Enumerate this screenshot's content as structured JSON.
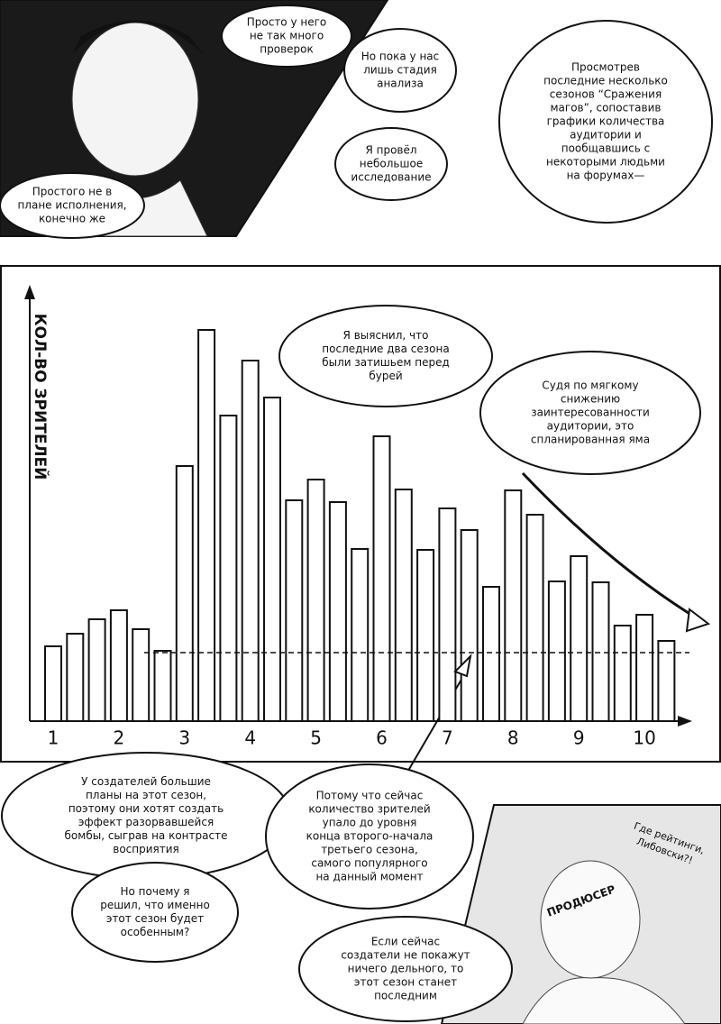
{
  "bubbles": [
    {
      "lines": [
        "Просто у него",
        "не так много",
        "проверок"
      ]
    },
    {
      "lines": [
        "Простого не в",
        "плане исполнения,",
        "конечно же"
      ]
    },
    {
      "lines": [
        "Но пока у нас",
        "лишь стадия",
        "анализа"
      ]
    },
    {
      "lines": [
        "Я провёл",
        "небольшое",
        "исследование"
      ]
    },
    {
      "lines": [
        "Просмотрев",
        "последние несколько",
        "сезонов “Сражения",
        "магов”, сопоставив",
        "графики количества",
        "аудитории и",
        "пообщавшись с",
        "некоторыми людьми",
        "на форумах—"
      ]
    },
    {
      "lines": [
        "Я выяснил, что",
        "последние два сезона",
        "были затишьем перед",
        "бурей"
      ]
    },
    {
      "lines": [
        "Судя по мягкому",
        "снижению",
        "заинтересованности",
        "аудитории, это",
        "спланированная яма"
      ]
    },
    {
      "lines": [
        "У создателей большие",
        "планы на этот сезон,",
        "поэтому они хотят создать",
        "эффект разорвавшейся",
        "бомбы, сыграв на контрасте",
        "восприятия"
      ]
    },
    {
      "lines": [
        "Но почему я",
        "решил, что именно",
        "этот сезон будет",
        "особенным?"
      ]
    },
    {
      "lines": [
        "Потому что сейчас",
        "количество зрителей",
        "упало до уровня",
        "конца второго-начала",
        "третьего сезона,",
        "самого популярного",
        "на данный момент"
      ]
    },
    {
      "lines": [
        "Если сейчас",
        "создатели не покажут",
        "ничего дельного, то",
        "этот сезон станет",
        "последним"
      ]
    }
  ],
  "sfx": {
    "shout": [
      "Где рейтинги,",
      "Либовски?!"
    ],
    "producer": "ПРОДЮСЕР"
  },
  "chart_data": {
    "type": "bar",
    "ylabel": "КОЛ-ВО ЗРИТЕЛЕЙ",
    "categories": [
      "1",
      null,
      null,
      "2",
      null,
      null,
      "3",
      null,
      null,
      "4",
      null,
      null,
      "5",
      null,
      null,
      "6",
      null,
      null,
      "7",
      null,
      null,
      "8",
      null,
      null,
      "9",
      null,
      null,
      "10",
      null
    ],
    "values": [
      83,
      97,
      113,
      123,
      102,
      78,
      283,
      434,
      339,
      400,
      359,
      245,
      268,
      243,
      191,
      316,
      257,
      190,
      236,
      212,
      149,
      256,
      229,
      155,
      183,
      154,
      106,
      118,
      89
    ],
    "color": "#ffffff",
    "ylim": [
      0,
      470
    ],
    "reference_line": 76
  }
}
